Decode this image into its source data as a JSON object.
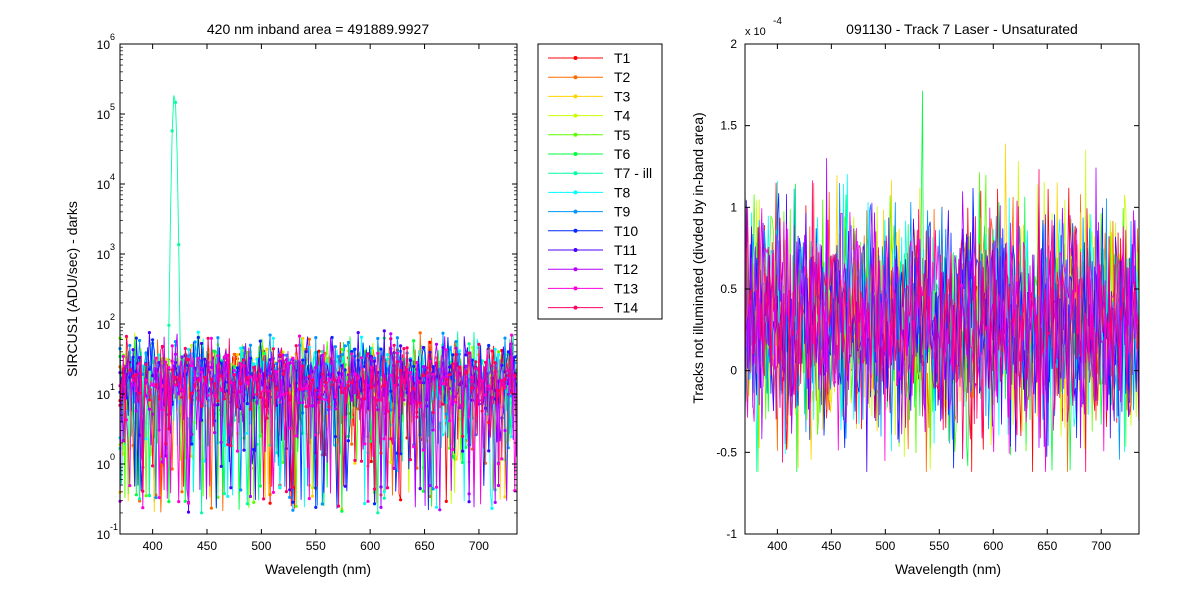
{
  "chart_data": [
    {
      "type": "line",
      "title": "420 nm     inband area = 491889.9927",
      "xlabel": "Wavelength (nm)",
      "ylabel": "SIRCUS1  (ADU/sec) - darks",
      "xlim": [
        370,
        735
      ],
      "ylim": [
        0.1,
        1000000
      ],
      "yscale": "log",
      "xticks": [
        "400",
        "450",
        "500",
        "550",
        "600",
        "650",
        "700"
      ],
      "yticks": [
        {
          "base": "10",
          "exp": "-1"
        },
        {
          "base": "10",
          "exp": "0"
        },
        {
          "base": "10",
          "exp": "1"
        },
        {
          "base": "10",
          "exp": "2"
        },
        {
          "base": "10",
          "exp": "3"
        },
        {
          "base": "10",
          "exp": "4"
        },
        {
          "base": "10",
          "exp": "5"
        },
        {
          "base": "10",
          "exp": "6"
        }
      ],
      "grid": false,
      "legend": "outside-right",
      "peak": {
        "x": 420,
        "y": 200000,
        "series": "T7 - ill"
      },
      "series": [
        {
          "name": "T1",
          "color": "#ff0000",
          "level": 15
        },
        {
          "name": "T2",
          "color": "#ff6a00",
          "level": 15
        },
        {
          "name": "T3",
          "color": "#ffd400",
          "level": 15
        },
        {
          "name": "T4",
          "color": "#c8ff00",
          "level": 15
        },
        {
          "name": "T5",
          "color": "#5aff00",
          "level": 15
        },
        {
          "name": "T6",
          "color": "#00ff3c",
          "level": 15
        },
        {
          "name": "T7 - ill",
          "color": "#00ffa0",
          "level": 15
        },
        {
          "name": "T8",
          "color": "#00ffff",
          "level": 18
        },
        {
          "name": "T9",
          "color": "#0096ff",
          "level": 18
        },
        {
          "name": "T10",
          "color": "#0028ff",
          "level": 18
        },
        {
          "name": "T11",
          "color": "#4b00ff",
          "level": 18
        },
        {
          "name": "T12",
          "color": "#b400ff",
          "level": 15
        },
        {
          "name": "T13",
          "color": "#ff00dc",
          "level": 15
        },
        {
          "name": "T14",
          "color": "#ff0064",
          "level": 15
        }
      ]
    },
    {
      "type": "line",
      "title": "091130 - Track 7 Laser - Unsaturated",
      "xlabel": "Wavelength (nm)",
      "ylabel": "Tracks not illuminated (divded by in-band area)",
      "xlim": [
        370,
        735
      ],
      "ylim": [
        -1,
        2
      ],
      "y_multiplier": {
        "base": "x 10",
        "exp": "-4"
      },
      "xticks": [
        "400",
        "450",
        "500",
        "550",
        "600",
        "650",
        "700"
      ],
      "yticks": [
        "-1",
        "-0.5",
        "0",
        "0.5",
        "1",
        "1.5",
        "2"
      ],
      "grid": false,
      "noise_band": {
        "center": 0.3,
        "min": -0.62,
        "max": 1.82
      },
      "series_colors": [
        "#ff0000",
        "#ff6a00",
        "#ffd400",
        "#c8ff00",
        "#5aff00",
        "#00ff3c",
        "#00ffff",
        "#0096ff",
        "#0028ff",
        "#4b00ff",
        "#b400ff",
        "#ff00dc",
        "#ff0064"
      ]
    }
  ]
}
